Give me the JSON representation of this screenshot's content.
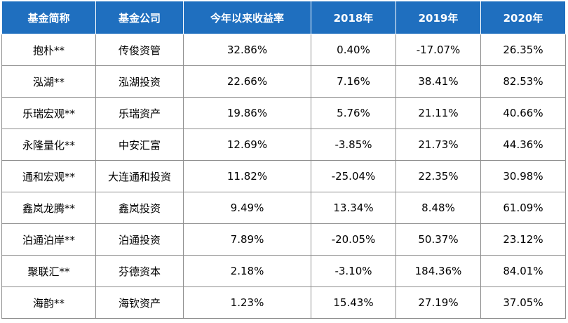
{
  "headers": [
    "基金简称",
    "基金公司",
    "今年以来收益率",
    "2018年",
    "2019年",
    "2020年"
  ],
  "rows": [
    [
      "抱朴**",
      "传俊资管",
      "32.86%",
      "0.40%",
      "-17.07%",
      "26.35%"
    ],
    [
      "泓湖**",
      "泓湖投资",
      "22.66%",
      "7.16%",
      "38.41%",
      "82.53%"
    ],
    [
      "乐瑞宏观**",
      "乐瑞资产",
      "19.86%",
      "5.76%",
      "21.11%",
      "40.66%"
    ],
    [
      "永隆量化**",
      "中安汇富",
      "12.69%",
      "-3.85%",
      "21.73%",
      "44.36%"
    ],
    [
      "通和宏观**",
      "大连通和投资",
      "11.82%",
      "-25.04%",
      "22.35%",
      "30.98%"
    ],
    [
      "鑫岚龙腾**",
      "鑫岚投资",
      "9.49%",
      "13.34%",
      "8.48%",
      "61.09%"
    ],
    [
      "泊通泊岸**",
      "泊通投资",
      "7.89%",
      "-20.05%",
      "50.37%",
      "23.12%"
    ],
    [
      "聚联汇**",
      "芬德资本",
      "2.18%",
      "-3.10%",
      "184.36%",
      "84.01%"
    ],
    [
      "海韵**",
      "海钦资产",
      "1.23%",
      "15.43%",
      "27.19%",
      "37.05%"
    ]
  ],
  "colors": {
    "header_bg": "#1f6fbf",
    "header_text": "#ffffff",
    "border": "#8f8f8f"
  }
}
